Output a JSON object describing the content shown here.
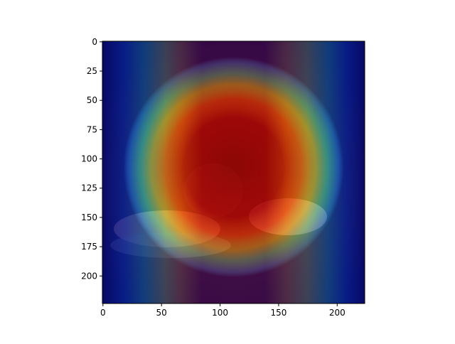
{
  "chart_data": {
    "type": "heatmap",
    "title": "",
    "xlabel": "",
    "ylabel": "",
    "xlim": [
      -0.5,
      223.5
    ],
    "ylim": [
      223.5,
      -0.5
    ],
    "x_ticks": [
      0,
      50,
      100,
      150,
      200
    ],
    "y_ticks": [
      0,
      25,
      50,
      75,
      100,
      125,
      150,
      175,
      200
    ],
    "colormap": "jet",
    "grid": false,
    "legend": "none"
  }
}
